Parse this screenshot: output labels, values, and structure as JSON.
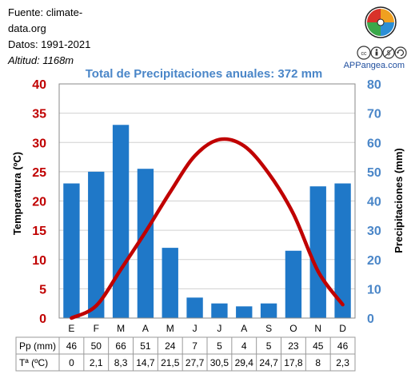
{
  "source": {
    "line1": "Fuente: climate-",
    "line2": "data.org",
    "period": "Datos: 1991-2021",
    "altitude": "Altitud: 1168m"
  },
  "brand": "APPangea.com",
  "colors": {
    "bars": "#1f78c8",
    "line": "#c00000",
    "title": "#4a86c8",
    "axis_left": "#c00000",
    "axis_right": "#4a86c8"
  },
  "icons": [
    "appangea-puzzle-logo",
    "creative-commons-icon",
    "attribution-icon",
    "noncommercial-icon",
    "sharealike-icon"
  ],
  "chart_data": {
    "type": "bar",
    "title": "Total de Precipitaciones anuales: 372 mm",
    "categories": [
      "E",
      "F",
      "M",
      "A",
      "M",
      "J",
      "J",
      "A",
      "S",
      "O",
      "N",
      "D"
    ],
    "series": [
      {
        "name": "Pp (mm)",
        "type": "bar",
        "axis": "right",
        "values": [
          46,
          50,
          66,
          51,
          24,
          7,
          5,
          4,
          5,
          23,
          45,
          46
        ]
      },
      {
        "name": "Tª (ºC)",
        "type": "line",
        "axis": "left",
        "values": [
          0,
          2.1,
          8.3,
          14.7,
          21.5,
          27.7,
          30.5,
          29.4,
          24.7,
          17.8,
          8,
          2.3
        ]
      }
    ],
    "ylabel": "Temperatura (ºC)",
    "y2label": "Precipitaciones (mm)",
    "ylim": [
      0,
      40
    ],
    "y2lim": [
      0,
      80
    ],
    "yticks": [
      0,
      5,
      10,
      15,
      20,
      25,
      30,
      35,
      40
    ],
    "y2ticks": [
      0,
      10,
      20,
      30,
      40,
      50,
      60,
      70,
      80
    ],
    "grid": true,
    "table": {
      "rows": [
        {
          "label": "Pp (mm)",
          "cells": [
            "46",
            "50",
            "66",
            "51",
            "24",
            "7",
            "5",
            "4",
            "5",
            "23",
            "45",
            "46"
          ]
        },
        {
          "label": "Tª (ºC)",
          "cells": [
            "0",
            "2,1",
            "8,3",
            "14,7",
            "21,5",
            "27,7",
            "30,5",
            "29,4",
            "24,7",
            "17,8",
            "8",
            "2,3"
          ]
        }
      ]
    }
  }
}
